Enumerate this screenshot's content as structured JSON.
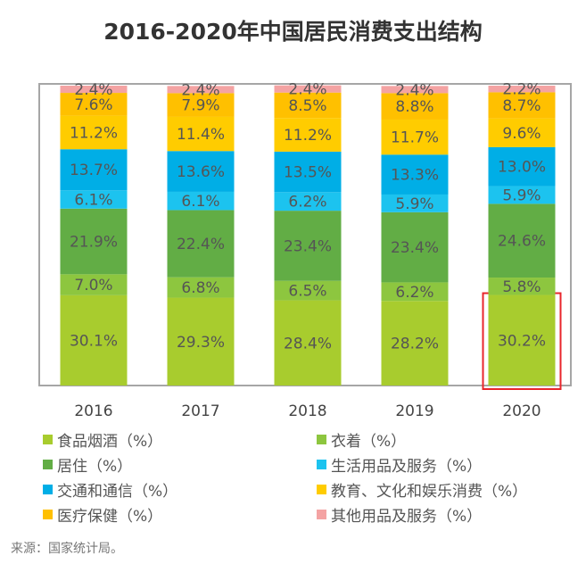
{
  "chart_data": {
    "type": "bar",
    "stacked": true,
    "title": "2016-2020年中国居民消费支出结构",
    "categories": [
      "2016",
      "2017",
      "2018",
      "2019",
      "2020"
    ],
    "ylim": [
      0,
      100
    ],
    "grid": false,
    "legend_position": "bottom",
    "series": [
      {
        "name": "食品烟酒（%）",
        "color": "#a8cc2e",
        "values": [
          30.1,
          29.3,
          28.4,
          28.2,
          30.2
        ]
      },
      {
        "name": "衣着（%）",
        "color": "#8dc63f",
        "values": [
          7.0,
          6.8,
          6.5,
          6.2,
          5.8
        ]
      },
      {
        "name": "居住（%）",
        "color": "#62ad45",
        "values": [
          21.9,
          22.4,
          23.4,
          23.4,
          24.6
        ]
      },
      {
        "name": "生活用品及服务（%）",
        "color": "#1cc3ef",
        "values": [
          6.1,
          6.1,
          6.2,
          5.9,
          5.9
        ]
      },
      {
        "name": "交通和通信（%）",
        "color": "#00aee6",
        "values": [
          13.7,
          13.6,
          13.5,
          13.3,
          13.0
        ]
      },
      {
        "name": "教育、文化和娱乐消费（%）",
        "color": "#ffcc00",
        "values": [
          11.2,
          11.4,
          11.2,
          11.7,
          9.6
        ]
      },
      {
        "name": "医疗保健（%）",
        "color": "#ffc000",
        "values": [
          7.6,
          7.9,
          8.5,
          8.8,
          8.7
        ]
      },
      {
        "name": "其他用品及服务（%）",
        "color": "#f4a3a3",
        "values": [
          2.4,
          2.4,
          2.4,
          2.4,
          2.2
        ]
      }
    ],
    "highlight": {
      "category": "2020",
      "series": "食品烟酒（%）",
      "color": "#e8262c"
    }
  },
  "source": "来源：国家统计局。"
}
